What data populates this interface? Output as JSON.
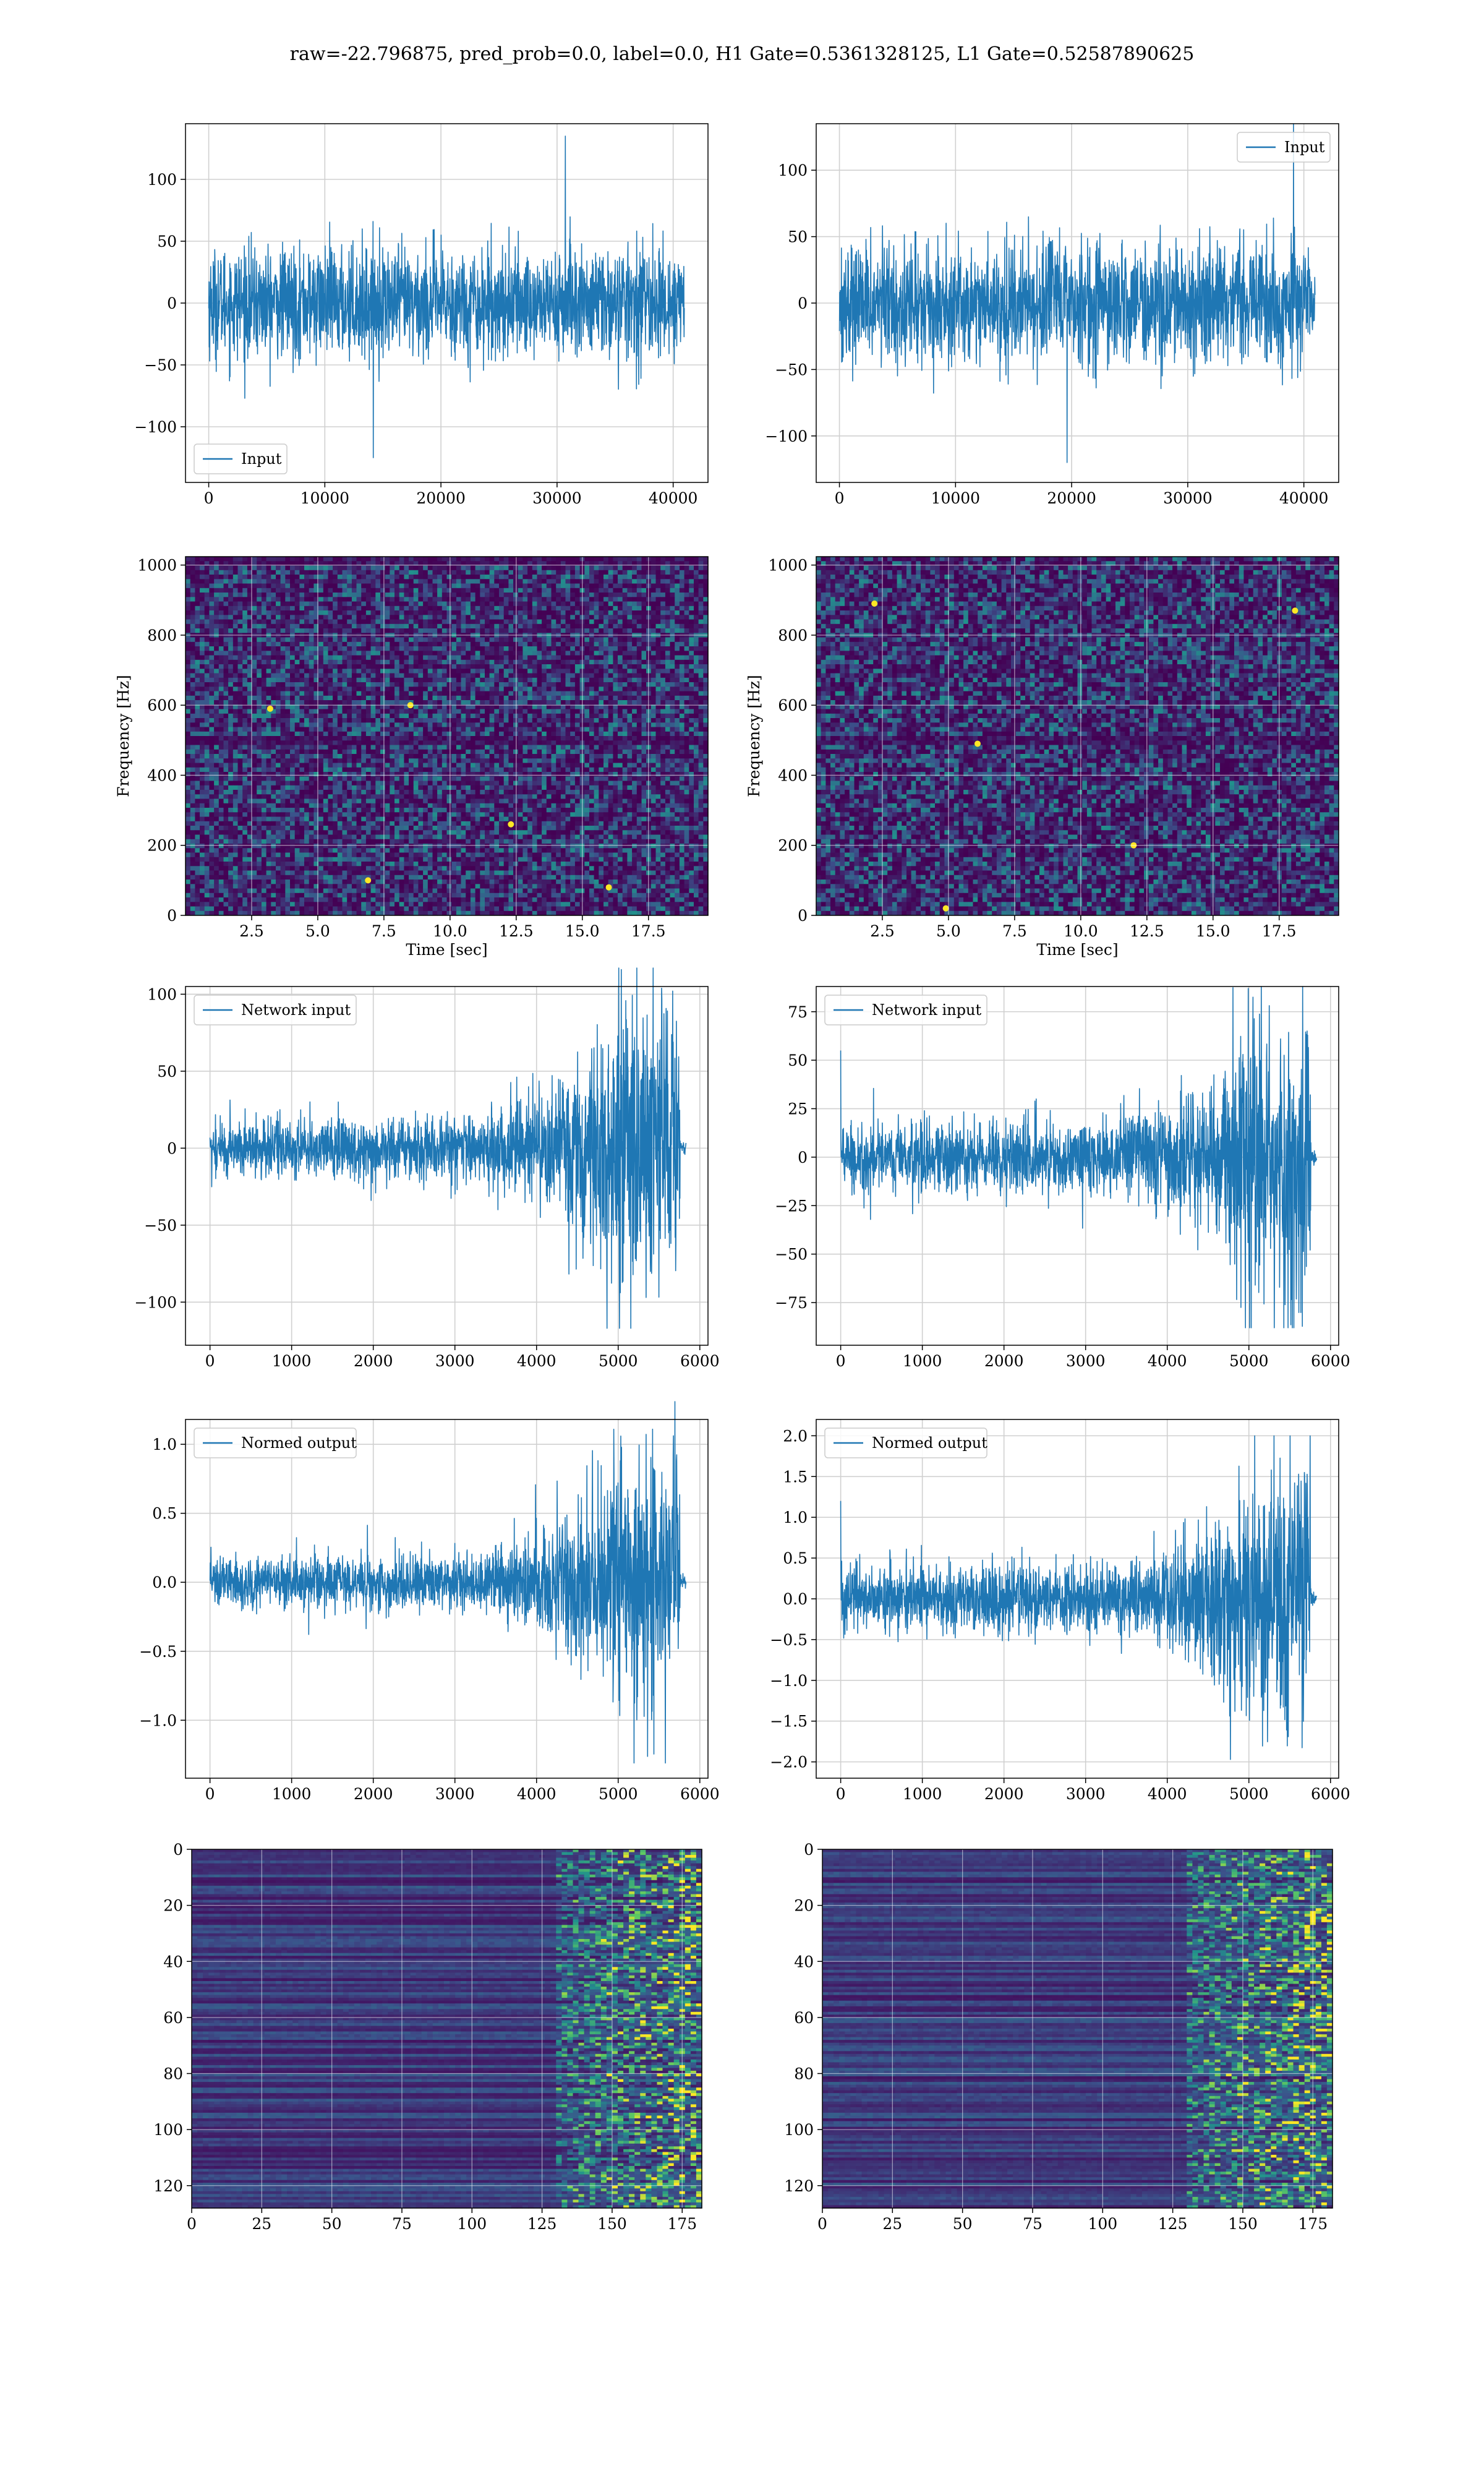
{
  "title": "raw=-22.796875, pred_prob=0.0, label=0.0, H1 Gate=0.5361328125, L1 Gate=0.52587890625",
  "colors": {
    "line": "#1f77b4",
    "grid": "#d0d0d0",
    "viridis_dark": "#440154",
    "viridis_mid": "#21918c",
    "viridis_bright": "#fde725"
  },
  "chart_data": [
    {
      "id": "h1-input",
      "type": "line",
      "legend": {
        "label": "Input",
        "loc": "lower left"
      },
      "xlim": [
        -2000,
        43000
      ],
      "ylim": [
        -145,
        145
      ],
      "xticks": [
        0,
        10000,
        20000,
        30000,
        40000
      ],
      "yticks": [
        -100,
        -50,
        0,
        50,
        100
      ],
      "series": [
        {
          "name": "Input",
          "x_range": [
            0,
            40960
          ],
          "std": 22,
          "peak": 135,
          "trough": -125
        }
      ]
    },
    {
      "id": "l1-input",
      "type": "line",
      "legend": {
        "label": "Input",
        "loc": "upper right"
      },
      "xlim": [
        -2000,
        43000
      ],
      "ylim": [
        -135,
        135
      ],
      "xticks": [
        0,
        10000,
        20000,
        30000,
        40000
      ],
      "yticks": [
        -100,
        -50,
        0,
        50,
        100
      ],
      "series": [
        {
          "name": "Input",
          "x_range": [
            0,
            40960
          ],
          "std": 22,
          "peak": 135,
          "trough": -120
        }
      ]
    },
    {
      "id": "h1-spectrogram",
      "type": "heatmap",
      "xlabel": "Time [sec]",
      "ylabel": "Frequency [Hz]",
      "xlim": [
        0,
        19.75
      ],
      "ylim": [
        0,
        1024
      ],
      "xticks": [
        2.5,
        5.0,
        7.5,
        10.0,
        12.5,
        15.0,
        17.5
      ],
      "xtick_labels": [
        "2.5",
        "5.0",
        "7.5",
        "10.0",
        "12.5",
        "15.0",
        "17.5"
      ],
      "yticks": [
        0,
        200,
        400,
        600,
        800,
        1000
      ],
      "dark_bands_hz": [
        500,
        1010
      ],
      "hot_spots": [
        [
          6.9,
          100
        ],
        [
          3.2,
          590
        ],
        [
          16.0,
          80
        ],
        [
          8.5,
          600
        ],
        [
          12.3,
          260
        ]
      ]
    },
    {
      "id": "l1-spectrogram",
      "type": "heatmap",
      "xlabel": "Time [sec]",
      "ylabel": "Frequency [Hz]",
      "xlim": [
        0,
        19.75
      ],
      "ylim": [
        0,
        1024
      ],
      "xticks": [
        2.5,
        5.0,
        7.5,
        10.0,
        12.5,
        15.0,
        17.5
      ],
      "xtick_labels": [
        "2.5",
        "5.0",
        "7.5",
        "10.0",
        "12.5",
        "15.0",
        "17.5"
      ],
      "yticks": [
        0,
        200,
        400,
        600,
        800,
        1000
      ],
      "dark_bands_hz": [
        500
      ],
      "hot_spots": [
        [
          2.2,
          890
        ],
        [
          6.1,
          490
        ],
        [
          18.1,
          870
        ],
        [
          4.9,
          20
        ],
        [
          12.0,
          200
        ]
      ]
    },
    {
      "id": "h1-network-input",
      "type": "line",
      "legend": {
        "label": "Network input",
        "loc": "upper left"
      },
      "xlim": [
        -300,
        6100
      ],
      "ylim": [
        -128,
        105
      ],
      "xticks": [
        0,
        1000,
        2000,
        3000,
        4000,
        5000,
        6000
      ],
      "yticks": [
        -100,
        -50,
        0,
        50,
        100
      ],
      "series": [
        {
          "name": "Network input",
          "x_range": [
            0,
            5830
          ],
          "envelope": [
            [
              0,
              9
            ],
            [
              3300,
              11
            ],
            [
              4000,
              16
            ],
            [
              4600,
              30
            ],
            [
              5000,
              48
            ],
            [
              5750,
              50
            ],
            [
              5760,
              2
            ],
            [
              5830,
              2
            ]
          ],
          "peak": 97,
          "trough": -117
        }
      ]
    },
    {
      "id": "l1-network-input",
      "type": "line",
      "legend": {
        "label": "Network input",
        "loc": "upper left"
      },
      "xlim": [
        -300,
        6100
      ],
      "ylim": [
        -97,
        88
      ],
      "xticks": [
        0,
        1000,
        2000,
        3000,
        4000,
        5000,
        6000
      ],
      "yticks": [
        -75,
        -50,
        -25,
        0,
        25,
        50,
        75
      ],
      "series": [
        {
          "name": "Network input",
          "x_range": [
            0,
            5830
          ],
          "envelope": [
            [
              0,
              9
            ],
            [
              3300,
              10
            ],
            [
              4000,
              13
            ],
            [
              4600,
              22
            ],
            [
              5000,
              36
            ],
            [
              5750,
              40
            ],
            [
              5760,
              2
            ],
            [
              5830,
              2
            ]
          ],
          "peak": 87,
          "trough": -88,
          "spike_start": 55
        }
      ]
    },
    {
      "id": "h1-normed-output",
      "type": "line",
      "legend": {
        "label": "Normed output",
        "loc": "upper left"
      },
      "xlim": [
        -300,
        6100
      ],
      "ylim": [
        -1.42,
        1.18
      ],
      "xticks": [
        0,
        1000,
        2000,
        3000,
        4000,
        5000,
        6000
      ],
      "yticks": [
        -1.0,
        -0.5,
        0.0,
        0.5,
        1.0
      ],
      "ytick_labels": [
        "−1.0",
        "−0.5",
        "0.0",
        "0.5",
        "1.0"
      ],
      "series": [
        {
          "name": "Normed output",
          "x_range": [
            0,
            5830
          ],
          "envelope": [
            [
              0,
              0.09
            ],
            [
              3300,
              0.11
            ],
            [
              4000,
              0.17
            ],
            [
              4600,
              0.33
            ],
            [
              5000,
              0.52
            ],
            [
              5750,
              0.55
            ],
            [
              5760,
              0.02
            ],
            [
              5830,
              0.02
            ]
          ],
          "peak": 1.06,
          "trough": -1.31
        }
      ]
    },
    {
      "id": "l1-normed-output",
      "type": "line",
      "legend": {
        "label": "Normed output",
        "loc": "upper left"
      },
      "xlim": [
        -300,
        6100
      ],
      "ylim": [
        -2.2,
        2.2
      ],
      "xticks": [
        0,
        1000,
        2000,
        3000,
        4000,
        5000,
        6000
      ],
      "yticks": [
        -2.0,
        -1.5,
        -1.0,
        -0.5,
        0.0,
        0.5,
        1.0,
        1.5,
        2.0
      ],
      "ytick_labels": [
        "−2.0",
        "−1.5",
        "−1.0",
        "−0.5",
        "0.0",
        "0.5",
        "1.0",
        "1.5",
        "2.0"
      ],
      "series": [
        {
          "name": "Normed output",
          "x_range": [
            0,
            5830
          ],
          "envelope": [
            [
              0,
              0.2
            ],
            [
              3300,
              0.22
            ],
            [
              4000,
              0.3
            ],
            [
              4600,
              0.5
            ],
            [
              5000,
              0.8
            ],
            [
              5750,
              0.9
            ],
            [
              5760,
              0.04
            ],
            [
              5830,
              0.04
            ]
          ],
          "peak": 2.0,
          "trough": -1.97,
          "spike_start": 1.2
        }
      ]
    },
    {
      "id": "h1-feature-map",
      "type": "heatmap",
      "xlim": [
        0,
        182
      ],
      "ylim": [
        128,
        0
      ],
      "xticks": [
        0,
        25,
        50,
        75,
        100,
        125,
        150,
        175
      ],
      "yticks": [
        0,
        20,
        40,
        60,
        80,
        100,
        120
      ],
      "active_from_col": 130
    },
    {
      "id": "l1-feature-map",
      "type": "heatmap",
      "xlim": [
        0,
        182
      ],
      "ylim": [
        128,
        0
      ],
      "xticks": [
        0,
        25,
        50,
        75,
        100,
        125,
        150,
        175
      ],
      "yticks": [
        0,
        20,
        40,
        60,
        80,
        100,
        120
      ],
      "active_from_col": 130
    }
  ]
}
